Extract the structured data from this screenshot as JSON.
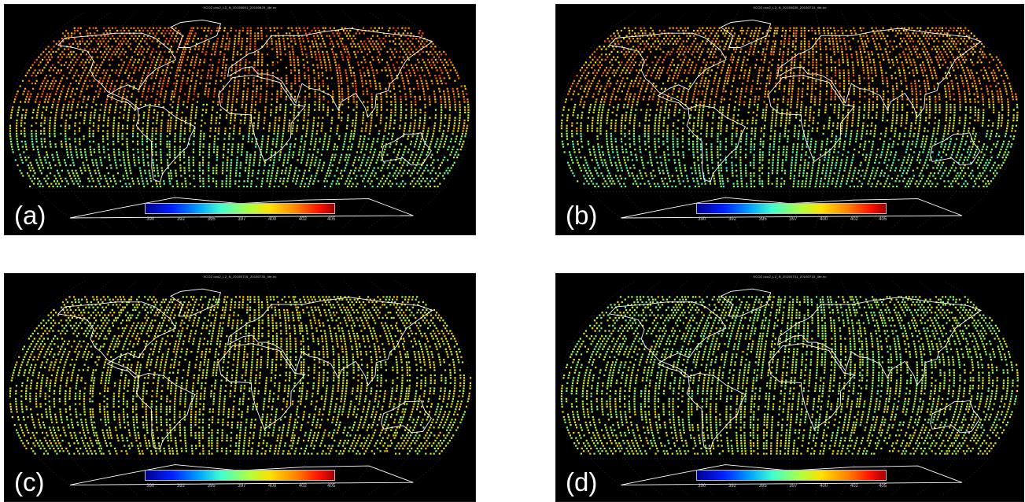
{
  "colorbar_ticks": [
    "390",
    "392",
    "395",
    "397",
    "400",
    "402",
    "405"
  ],
  "panels": [
    {
      "label": "(a)",
      "title": "XCO2 oco2_L2_N_20150601_20150629_lite.nc"
    },
    {
      "label": "(b)",
      "title": "XCO2 oco2_L2_N_20150630_20150714_lite.nc"
    },
    {
      "label": "(c)",
      "title": "XCO2 oco2_L2_N_20150716_20150730_lite.nc"
    },
    {
      "label": "(d)",
      "title": "XCO2 oco2_L2_N_20150731_20150715_lite.nc"
    }
  ],
  "colors": {
    "background": "#000000",
    "coastline": "#ffffff",
    "figure_bg": "#ffffff"
  }
}
